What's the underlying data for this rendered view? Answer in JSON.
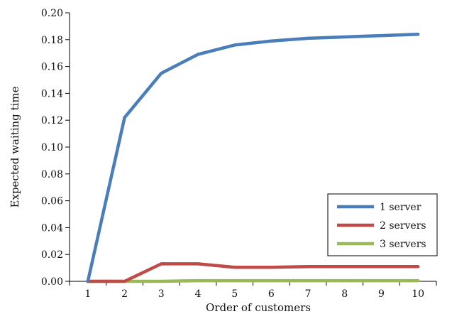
{
  "chart_data": {
    "type": "line",
    "title": "",
    "xlabel": "Order of customers",
    "ylabel": "Expected waiting time",
    "x": [
      1,
      2,
      3,
      4,
      5,
      6,
      7,
      8,
      9,
      10
    ],
    "xlim": [
      0.5,
      10.5
    ],
    "ylim": [
      0,
      0.2
    ],
    "y_ticks": [
      "0.00",
      "0.02",
      "0.04",
      "0.06",
      "0.08",
      "0.10",
      "0.12",
      "0.14",
      "0.16",
      "0.18",
      "0.20"
    ],
    "x_ticks": [
      "1",
      "2",
      "3",
      "4",
      "5",
      "6",
      "7",
      "8",
      "9",
      "10"
    ],
    "grid": false,
    "legend_position": "bottom-right",
    "series": [
      {
        "name": "1 server",
        "color": "#4a7ebb",
        "values": [
          0.0,
          0.122,
          0.155,
          0.169,
          0.176,
          0.179,
          0.181,
          0.182,
          0.183,
          0.184
        ]
      },
      {
        "name": "2 servers",
        "color": "#be4b48",
        "values": [
          0.0,
          0.0,
          0.013,
          0.013,
          0.0105,
          0.0105,
          0.011,
          0.011,
          0.011,
          0.011
        ]
      },
      {
        "name": "3 servers",
        "color": "#98b954",
        "values": [
          0.0,
          0.0,
          0.0,
          0.0005,
          0.0005,
          0.0005,
          0.0005,
          0.0005,
          0.0005,
          0.0005
        ]
      }
    ]
  }
}
